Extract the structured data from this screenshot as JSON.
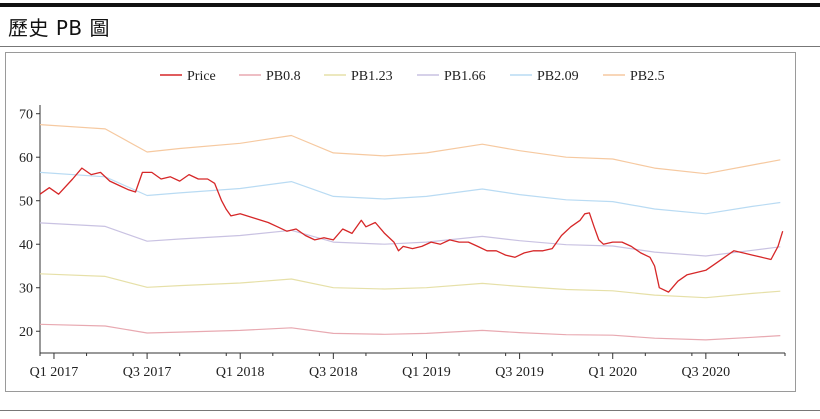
{
  "header": {
    "title": "歷史 PB 圖"
  },
  "colors": {
    "price": "#d62728",
    "pb08": "#e8a9b1",
    "pb123": "#e6e0a8",
    "pb166": "#c9c2e2",
    "pb209": "#b9dbf3",
    "pb25": "#f6c9a0"
  },
  "chart_data": {
    "type": "line",
    "title": "",
    "xlabel": "",
    "ylabel": "",
    "x_range": [
      0,
      16
    ],
    "ylim": [
      15,
      72
    ],
    "yticks": [
      20,
      30,
      40,
      50,
      60,
      70
    ],
    "xticks": [
      {
        "pos": 0.3,
        "label": "Q1 2017"
      },
      {
        "pos": 2.3,
        "label": "Q3 2017"
      },
      {
        "pos": 4.3,
        "label": "Q1 2018"
      },
      {
        "pos": 6.3,
        "label": "Q3 2018"
      },
      {
        "pos": 8.3,
        "label": "Q1 2019"
      },
      {
        "pos": 10.3,
        "label": "Q3 2019"
      },
      {
        "pos": 12.3,
        "label": "Q1 2020"
      },
      {
        "pos": 14.3,
        "label": "Q3 2020"
      }
    ],
    "legend": [
      "Price",
      "PB0.8",
      "PB1.23",
      "PB1.66",
      "PB2.09",
      "PB2.5"
    ],
    "series": [
      {
        "name": "PB2.5",
        "key": "pb25",
        "x": [
          0,
          1.4,
          2.3,
          3.0,
          4.3,
          5.4,
          6.3,
          7.4,
          8.3,
          9.5,
          10.3,
          11.3,
          12.3,
          13.2,
          14.3,
          15.3,
          15.9
        ],
        "values": [
          67.5,
          66.5,
          61.2,
          62.0,
          63.2,
          65.0,
          61.0,
          60.3,
          61.0,
          63.0,
          61.5,
          60.0,
          59.6,
          57.5,
          56.2,
          58.2,
          59.4
        ]
      },
      {
        "name": "PB2.09",
        "key": "pb209",
        "x": [
          0,
          1.4,
          2.3,
          3.0,
          4.3,
          5.4,
          6.3,
          7.4,
          8.3,
          9.5,
          10.3,
          11.3,
          12.3,
          13.2,
          14.3,
          15.3,
          15.9
        ],
        "values": [
          56.5,
          55.5,
          51.2,
          51.8,
          52.8,
          54.4,
          51.0,
          50.4,
          51.0,
          52.7,
          51.4,
          50.2,
          49.8,
          48.1,
          47.0,
          48.7,
          49.6
        ]
      },
      {
        "name": "PB1.66",
        "key": "pb166",
        "x": [
          0,
          1.4,
          2.3,
          3.0,
          4.3,
          5.4,
          6.3,
          7.4,
          8.3,
          9.5,
          10.3,
          11.3,
          12.3,
          13.2,
          14.3,
          15.3,
          15.9
        ],
        "values": [
          44.9,
          44.1,
          40.7,
          41.2,
          42.0,
          43.2,
          40.5,
          40.0,
          40.5,
          41.8,
          40.8,
          39.9,
          39.6,
          38.2,
          37.3,
          38.6,
          39.4
        ]
      },
      {
        "name": "PB1.23",
        "key": "pb123",
        "x": [
          0,
          1.4,
          2.3,
          3.0,
          4.3,
          5.4,
          6.3,
          7.4,
          8.3,
          9.5,
          10.3,
          11.3,
          12.3,
          13.2,
          14.3,
          15.3,
          15.9
        ],
        "values": [
          33.2,
          32.6,
          30.1,
          30.5,
          31.1,
          32.0,
          30.0,
          29.7,
          30.0,
          31.0,
          30.3,
          29.6,
          29.3,
          28.3,
          27.7,
          28.7,
          29.2
        ]
      },
      {
        "name": "PB0.8",
        "key": "pb08",
        "x": [
          0,
          1.4,
          2.3,
          3.0,
          4.3,
          5.4,
          6.3,
          7.4,
          8.3,
          9.5,
          10.3,
          11.3,
          12.3,
          13.2,
          14.3,
          15.3,
          15.9
        ],
        "values": [
          21.6,
          21.2,
          19.6,
          19.8,
          20.2,
          20.8,
          19.5,
          19.3,
          19.5,
          20.2,
          19.7,
          19.2,
          19.1,
          18.4,
          18.0,
          18.6,
          19.0
        ]
      },
      {
        "name": "Price",
        "key": "price",
        "x": [
          0,
          0.2,
          0.4,
          0.7,
          0.9,
          1.1,
          1.3,
          1.5,
          1.7,
          1.9,
          2.05,
          2.2,
          2.4,
          2.6,
          2.8,
          3.0,
          3.2,
          3.4,
          3.6,
          3.75,
          3.9,
          4.0,
          4.1,
          4.3,
          4.6,
          4.9,
          5.1,
          5.3,
          5.5,
          5.7,
          5.9,
          6.1,
          6.3,
          6.5,
          6.7,
          6.9,
          7.0,
          7.2,
          7.4,
          7.6,
          7.7,
          7.8,
          8.0,
          8.2,
          8.4,
          8.6,
          8.8,
          9.0,
          9.2,
          9.4,
          9.6,
          9.8,
          10.0,
          10.2,
          10.4,
          10.6,
          10.8,
          11.0,
          11.2,
          11.4,
          11.6,
          11.7,
          11.8,
          11.9,
          12.0,
          12.1,
          12.3,
          12.5,
          12.7,
          12.9,
          13.1,
          13.2,
          13.3,
          13.5,
          13.7,
          13.9,
          14.1,
          14.3,
          14.5,
          14.7,
          14.9,
          15.1,
          15.3,
          15.5,
          15.7,
          15.85,
          15.95
        ],
        "values": [
          51.5,
          53.0,
          51.5,
          55.0,
          57.5,
          56.0,
          56.5,
          54.5,
          53.5,
          52.5,
          52.0,
          56.5,
          56.5,
          55.0,
          55.5,
          54.5,
          56.0,
          55.0,
          55.0,
          54.0,
          50.0,
          48.0,
          46.5,
          47.0,
          46.0,
          45.0,
          44.0,
          43.0,
          43.5,
          42.0,
          41.0,
          41.5,
          41.0,
          43.5,
          42.5,
          45.5,
          44.0,
          45.0,
          42.5,
          40.5,
          38.5,
          39.5,
          39.0,
          39.5,
          40.5,
          40.0,
          41.0,
          40.5,
          40.5,
          39.5,
          38.5,
          38.5,
          37.5,
          37.0,
          38.0,
          38.5,
          38.5,
          39.0,
          42.0,
          44.0,
          45.5,
          47.0,
          47.2,
          44.0,
          41.0,
          40.0,
          40.5,
          40.5,
          39.5,
          38.0,
          37.0,
          35.0,
          30.0,
          29.0,
          31.5,
          33.0,
          33.5,
          34.0,
          35.5,
          37.0,
          38.5,
          38.0,
          37.5,
          37.0,
          36.5,
          39.5,
          43.0
        ]
      }
    ]
  }
}
